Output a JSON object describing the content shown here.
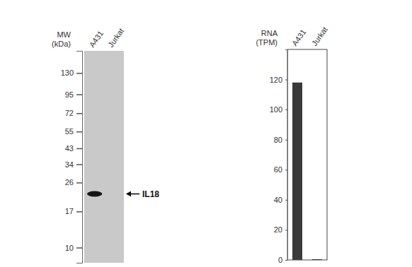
{
  "chart_data": [
    {
      "type": "blot",
      "ylabel": [
        "MW",
        "(kDa)"
      ],
      "categories": [
        "A431",
        "Jurkat"
      ],
      "values": [
        22,
        null
      ],
      "annotation": "IL18",
      "log": "y",
      "ylim": [
        8,
        180
      ],
      "yticks": [
        130,
        95,
        72,
        55,
        43,
        34,
        26,
        17,
        10
      ],
      "color": "#151515"
    },
    {
      "type": "bar",
      "ylabel": [
        "RNA",
        "(TPM)"
      ],
      "categories": [
        "A431",
        "Jurkat"
      ],
      "values": [
        118,
        0.5
      ],
      "ylim": [
        0,
        140
      ],
      "yticks": [
        0,
        20,
        40,
        60,
        80,
        100,
        120
      ],
      "color": "#3a3a3a"
    }
  ]
}
